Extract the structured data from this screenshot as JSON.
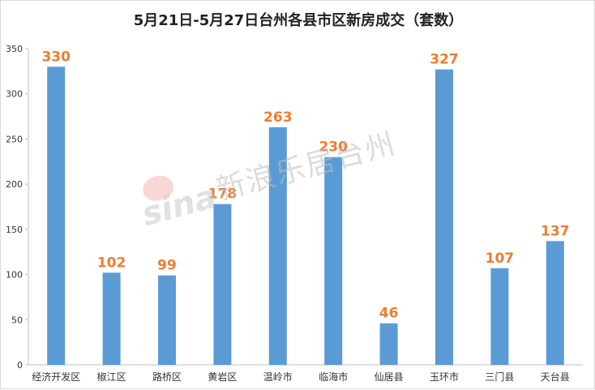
{
  "chart_data": {
    "type": "bar",
    "title": "5月21日-5月27日台州各县市区新房成交（套数）",
    "categories": [
      "经济开发区",
      "椒江区",
      "路桥区",
      "黄岩区",
      "温岭市",
      "临海市",
      "仙居县",
      "玉环市",
      "三门县",
      "天台县"
    ],
    "values": [
      330,
      102,
      99,
      178,
      263,
      230,
      46,
      327,
      107,
      137
    ],
    "ylim": [
      0,
      350
    ],
    "yticks": [
      0,
      50,
      100,
      150,
      200,
      250,
      300,
      350
    ],
    "grid": false,
    "legend": "none",
    "colors": {
      "bar": "#5B9BD5",
      "data_label": "#ED7D31",
      "axis": "#bfbfbf",
      "tick_text": "#333333"
    }
  },
  "watermark": {
    "logo": "sina",
    "text": "新浪乐居台州"
  }
}
